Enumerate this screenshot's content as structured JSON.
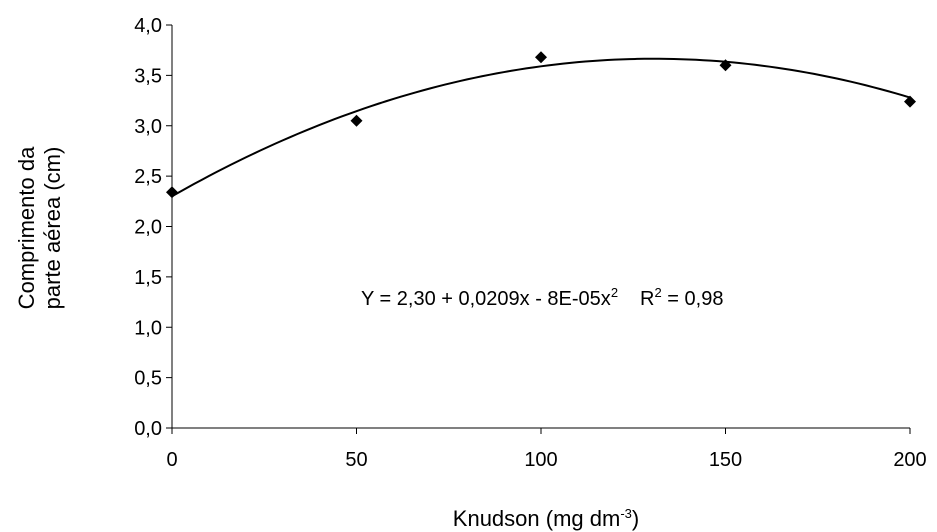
{
  "chart_data": {
    "type": "scatter",
    "title": "",
    "xlabel": {
      "main": "Knudson (mg dm",
      "sup": "-3",
      "close": ")"
    },
    "ylabel": {
      "line1": "Comprimento da",
      "line2": "parte aérea (cm)"
    },
    "x_ticks": [
      0,
      50,
      100,
      150,
      200
    ],
    "x_tick_labels": [
      "0",
      "50",
      "100",
      "150",
      "200"
    ],
    "y_ticks": [
      0,
      0.5,
      1.0,
      1.5,
      2.0,
      2.5,
      3.0,
      3.5,
      4.0
    ],
    "y_tick_labels": [
      "0,0",
      "0,5",
      "1,0",
      "1,5",
      "2,0",
      "2,5",
      "3,0",
      "3,5",
      "4,0"
    ],
    "xlim": [
      0,
      200
    ],
    "ylim": [
      0,
      4.0
    ],
    "grid": false,
    "legend": "none",
    "points": [
      {
        "x": 0,
        "y": 2.34
      },
      {
        "x": 50,
        "y": 3.05
      },
      {
        "x": 100,
        "y": 3.68
      },
      {
        "x": 150,
        "y": 3.6
      },
      {
        "x": 200,
        "y": 3.24
      }
    ],
    "marker": "diamond",
    "marker_color": "#000000",
    "trendline": {
      "type": "quadratic",
      "coefficients": [
        2.3,
        0.0209,
        -8e-05
      ],
      "color": "#000000"
    },
    "annotation": {
      "equation_main": "Y = 2,30 + 0,0209x - 8E-05x",
      "equation_sup": "2",
      "r2_main": "R",
      "r2_sup": "2",
      "r2_value": " = 0,98"
    }
  }
}
